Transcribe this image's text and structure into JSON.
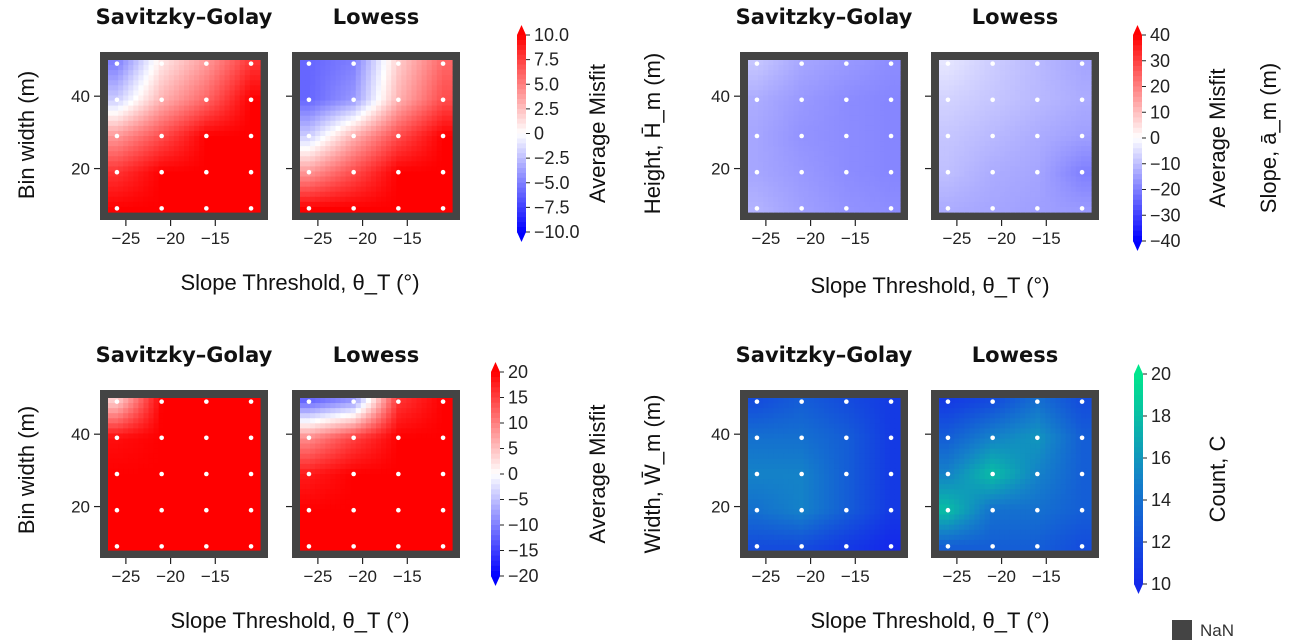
{
  "figure": {
    "nan_legend": {
      "label": "NaN",
      "color": "#444444"
    }
  },
  "chart_data": [
    {
      "type": "heatmap",
      "panel": "top-left",
      "subplot_titles": [
        "Savitzky–Golay",
        "Lowess"
      ],
      "ylabel": "Bin width (m)",
      "xlabel": "Slope Threshold, θ_T (°)",
      "x_ticks": [
        "−25",
        "−20",
        "−15"
      ],
      "y_ticks": [
        "20",
        "40"
      ],
      "x_range": [
        -27,
        -10
      ],
      "y_range": [
        8,
        50
      ],
      "colormap": "blue-white-red",
      "colorbar": {
        "label": "Average Misfit",
        "quantity": "Height, H̄_m (m)",
        "ticks": [
          "10.0",
          "7.5",
          "5.0",
          "2.5",
          "0",
          "−2.5",
          "−5.0",
          "−7.5",
          "−10.0"
        ],
        "range": [
          -10,
          10
        ]
      },
      "x": [
        -26,
        -21,
        -16,
        -11
      ],
      "y": [
        9,
        19,
        29,
        39,
        49
      ],
      "maps": [
        [
          [
            10,
            10,
            10,
            10
          ],
          [
            8,
            10,
            10,
            10
          ],
          [
            4,
            7,
            10,
            10
          ],
          [
            -2,
            3,
            6,
            10
          ],
          [
            -5,
            1,
            4,
            8
          ]
        ],
        [
          [
            10,
            10,
            10,
            10
          ],
          [
            4,
            7,
            10,
            10
          ],
          [
            -2,
            3,
            7,
            10
          ],
          [
            -6,
            -4,
            3,
            7
          ],
          [
            -6,
            -5,
            2,
            6
          ]
        ]
      ]
    },
    {
      "type": "heatmap",
      "panel": "top-right",
      "subplot_titles": [
        "Savitzky–Golay",
        "Lowess"
      ],
      "xlabel": "Slope Threshold, θ_T (°)",
      "x_ticks": [
        "−25",
        "−20",
        "−15"
      ],
      "y_ticks": [
        "20",
        "40"
      ],
      "x_range": [
        -27,
        -10
      ],
      "y_range": [
        8,
        50
      ],
      "colormap": "blue-white-red",
      "colorbar": {
        "label": "Average Misfit",
        "quantity": "Slope, ā_m (m)",
        "ticks": [
          "40",
          "30",
          "20",
          "10",
          "0",
          "−10",
          "−20",
          "−30",
          "−40"
        ],
        "range": [
          -40,
          40
        ]
      },
      "x": [
        -26,
        -21,
        -16,
        -11
      ],
      "y": [
        9,
        19,
        29,
        39,
        49
      ],
      "maps": [
        [
          [
            -12,
            -15,
            -17,
            -18
          ],
          [
            -14,
            -16,
            -18,
            -19
          ],
          [
            -14,
            -17,
            -18,
            -19
          ],
          [
            -13,
            -16,
            -18,
            -19
          ],
          [
            -9,
            -14,
            -16,
            -18
          ]
        ],
        [
          [
            -13,
            -14,
            -15,
            -16
          ],
          [
            -10,
            -13,
            -14,
            -20
          ],
          [
            -9,
            -11,
            -13,
            -15
          ],
          [
            -7,
            -9,
            -11,
            -13
          ],
          [
            -4,
            -8,
            -11,
            -14
          ]
        ]
      ]
    },
    {
      "type": "heatmap",
      "panel": "bottom-left",
      "subplot_titles": [
        "Savitzky–Golay",
        "Lowess"
      ],
      "ylabel": "Bin width (m)",
      "xlabel": "Slope Threshold, θ_T (°)",
      "x_ticks": [
        "−25",
        "−20",
        "−15"
      ],
      "y_ticks": [
        "20",
        "40"
      ],
      "x_range": [
        -27,
        -10
      ],
      "y_range": [
        8,
        50
      ],
      "colormap": "blue-white-red",
      "colorbar": {
        "label": "Average Misfit",
        "quantity": "Width, W̄_m (m)",
        "ticks": [
          "20",
          "15",
          "10",
          "5",
          "0",
          "−5",
          "−10",
          "−15",
          "−20"
        ],
        "range": [
          -20,
          20
        ]
      },
      "x": [
        -26,
        -21,
        -16,
        -11
      ],
      "y": [
        9,
        19,
        29,
        39,
        49
      ],
      "maps": [
        [
          [
            20,
            20,
            20,
            20
          ],
          [
            20,
            20,
            20,
            20
          ],
          [
            20,
            20,
            20,
            20
          ],
          [
            19,
            20,
            20,
            20
          ],
          [
            4,
            20,
            20,
            20
          ]
        ],
        [
          [
            20,
            20,
            20,
            20
          ],
          [
            20,
            20,
            20,
            20
          ],
          [
            18,
            20,
            20,
            20
          ],
          [
            9,
            15,
            20,
            20
          ],
          [
            -12,
            -8,
            16,
            20
          ]
        ]
      ]
    },
    {
      "type": "heatmap",
      "panel": "bottom-right",
      "subplot_titles": [
        "Savitzky–Golay",
        "Lowess"
      ],
      "xlabel": "Slope Threshold, θ_T (°)",
      "x_ticks": [
        "−25",
        "−20",
        "−15"
      ],
      "y_ticks": [
        "20",
        "40"
      ],
      "x_range": [
        -27,
        -10
      ],
      "y_range": [
        8,
        50
      ],
      "colormap": "blue-green",
      "colorbar": {
        "label": "Count, C",
        "ticks": [
          "20",
          "18",
          "16",
          "14",
          "12",
          "10"
        ],
        "range": [
          10,
          20
        ]
      },
      "x": [
        -26,
        -21,
        -16,
        -11
      ],
      "y": [
        9,
        19,
        29,
        39,
        49
      ],
      "maps": [
        [
          [
            12,
            12,
            11,
            10
          ],
          [
            14,
            15,
            13,
            11
          ],
          [
            15,
            15,
            13,
            11
          ],
          [
            14,
            14,
            13,
            11
          ],
          [
            12,
            13,
            12,
            11
          ]
        ],
        [
          [
            13,
            13,
            13,
            12
          ],
          [
            18,
            14,
            14,
            13
          ],
          [
            15,
            18,
            15,
            13
          ],
          [
            13,
            15,
            16,
            13
          ],
          [
            11,
            12,
            14,
            12
          ]
        ]
      ]
    }
  ]
}
